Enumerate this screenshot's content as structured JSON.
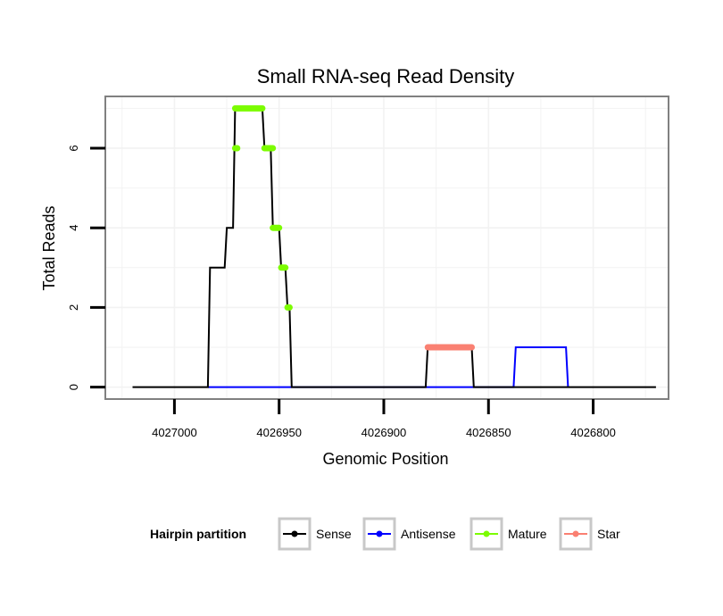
{
  "chart_data": {
    "type": "line",
    "title": "Small RNA-seq Read Density",
    "xlabel": "Genomic Position",
    "ylabel": "Total Reads",
    "x_reversed": true,
    "xlim": [
      4027033,
      4026764
    ],
    "ylim": [
      -0.3,
      7.3
    ],
    "x_ticks": [
      4027000,
      4026950,
      4026900,
      4026850,
      4026800
    ],
    "x_tick_labels": [
      "4027000",
      "4026950",
      "4026900",
      "4026850",
      "4026800"
    ],
    "y_ticks": [
      0,
      2,
      4,
      6
    ],
    "y_tick_labels": [
      "0",
      "2",
      "4",
      "6"
    ],
    "grid": true,
    "legend": {
      "title": "Hairpin partition",
      "position": "bottom",
      "entries": [
        {
          "name": "Sense",
          "color": "#000000"
        },
        {
          "name": "Antisense",
          "color": "#0000ff"
        },
        {
          "name": "Mature",
          "color": "#7cfc00"
        },
        {
          "name": "Star",
          "color": "#fa8072"
        }
      ]
    },
    "series": [
      {
        "name": "Sense",
        "color": "#000000",
        "x": [
          4027020,
          4026984,
          4026983,
          4026976,
          4026975,
          4026972,
          4026971,
          4026958,
          4026957,
          4026954,
          4026953,
          4026950,
          4026949,
          4026947,
          4026946,
          4026945,
          4026944,
          4026880,
          4026879,
          4026858,
          4026857,
          4026770
        ],
        "y": [
          0,
          0,
          3,
          3,
          4,
          4,
          7,
          7,
          6,
          6,
          4,
          4,
          3,
          3,
          2,
          2,
          0,
          0,
          1,
          1,
          0,
          0
        ]
      },
      {
        "name": "Antisense",
        "color": "#0000ff",
        "x": [
          4026984,
          4026944,
          4026880,
          4026857,
          4026838,
          4026837,
          4026813,
          4026812
        ],
        "y": [
          0,
          0,
          0,
          0,
          0,
          1,
          1,
          0
        ]
      },
      {
        "name": "Mature",
        "color": "#7cfc00",
        "x": [
          4026971,
          4026958,
          4026970,
          4026953,
          4026949,
          4026946,
          4026944
        ],
        "y": [
          7,
          7,
          6,
          6,
          4,
          3,
          2
        ]
      },
      {
        "name": "Star",
        "color": "#fa8072",
        "x": [
          4026879,
          4026858
        ],
        "y": [
          1,
          1
        ]
      }
    ],
    "mature_segments": [
      {
        "x0": 4026971,
        "x1": 4026958,
        "y": 7
      },
      {
        "x0": 4026971,
        "x1": 4026970,
        "y": 6
      },
      {
        "x0": 4026957,
        "x1": 4026953,
        "y": 6
      },
      {
        "x0": 4026953,
        "x1": 4026950,
        "y": 4
      },
      {
        "x0": 4026949,
        "x1": 4026947,
        "y": 3
      },
      {
        "x0": 4026946,
        "x1": 4026945,
        "y": 2
      }
    ],
    "star_segments": [
      {
        "x0": 4026879,
        "x1": 4026858,
        "y": 1
      }
    ]
  }
}
